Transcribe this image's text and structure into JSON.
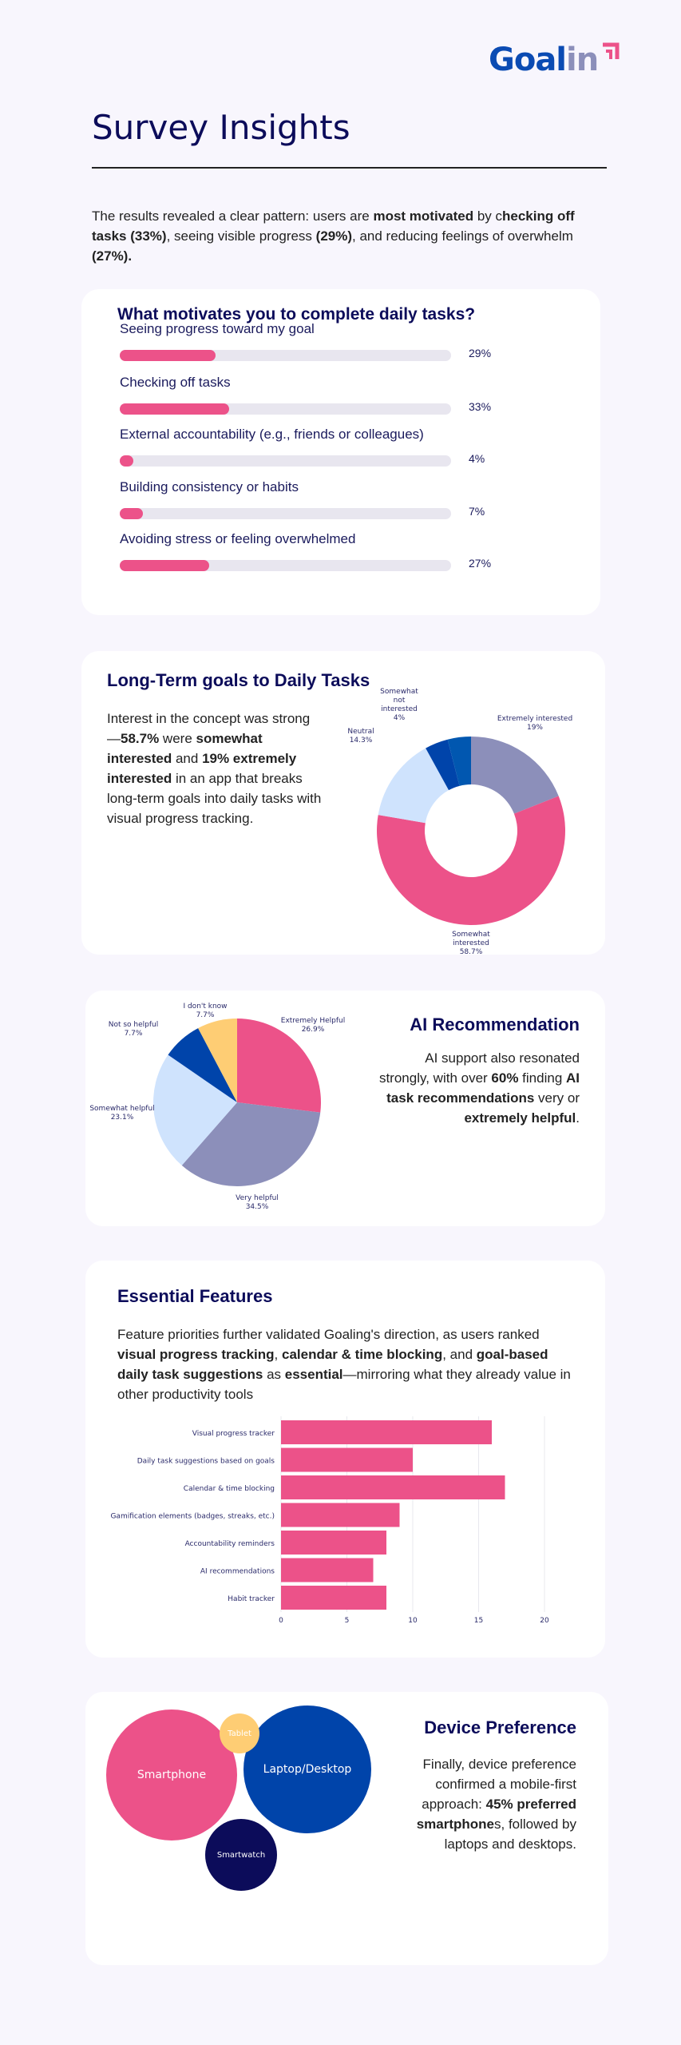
{
  "logo": {
    "text_a": "Goal",
    "text_b": "in"
  },
  "header": {
    "title": "Survey Insights"
  },
  "intro": {
    "t1": "The results revealed a clear pattern: users are ",
    "b1": "most motivated",
    "t2": " by c",
    "b2": "hecking off tasks (33%)",
    "t3": ", seeing visible progress ",
    "b3": "(29%)",
    "t4": ", and reducing feelings of overwhelm ",
    "b4": "(27%)."
  },
  "colors": {
    "pink": "#ec5289",
    "lavender": "#8c8fba",
    "light_blue": "#cfe3fd",
    "blue": "#0044aa",
    "mid_blue": "#0157b0",
    "yellow": "#fecd74",
    "navy": "#0c0c5a"
  },
  "motivation": {
    "title": "What motivates you to complete daily tasks?",
    "items": [
      {
        "label": "Seeing progress toward my goal",
        "value": 29,
        "pct": "29%"
      },
      {
        "label": "Checking off tasks",
        "value": 33,
        "pct": "33%"
      },
      {
        "label": "External accountability (e.g., friends or colleagues)",
        "value": 4,
        "pct": "4%"
      },
      {
        "label": "Building consistency or habits",
        "value": 7,
        "pct": "7%"
      },
      {
        "label": "Avoiding stress or feeling overwhelmed",
        "value": 27,
        "pct": "27%"
      }
    ]
  },
  "longterm": {
    "title": "Long-Term goals to Daily Tasks",
    "t1": "Interest in the concept was strong—",
    "b1": "58.7%",
    "t2": " were ",
    "b2": "somewhat interested",
    "t3": " and ",
    "b3": "19% extremely interested",
    "t4": " in an app that breaks long-term goals into daily tasks with visual progress tracking."
  },
  "ai": {
    "title": "AI Recommendation",
    "t1": "AI support also resonated strongly, with over ",
    "b1": "60%",
    "t2": " finding ",
    "b2": "AI task recommendations",
    "t3": " very or ",
    "b3": "extremely helpful",
    "t4": "."
  },
  "features": {
    "title": "Essential Features",
    "t1": "Feature priorities further validated Goaling's direction, as users ranked ",
    "b1": "visual progress tracking",
    "t2": ", ",
    "b2": "calendar & time blocking",
    "t3": ", and ",
    "b3": "goal-based daily task suggestions",
    "t4": " as ",
    "b4": "essential",
    "t5": "—mirroring what they already value in other productivity tools"
  },
  "device": {
    "title": "Device Preference",
    "t1": "Finally, device preference confirmed a mobile-first approach: ",
    "b1": "45% preferred smartphone",
    "t2": "s, followed by laptops and desktops.",
    "bubbles": [
      {
        "label": "Smartphone",
        "color": "#ec5289"
      },
      {
        "label": "Laptop/Desktop",
        "color": "#0044aa"
      },
      {
        "label": "Tablet",
        "color": "#fecd74"
      },
      {
        "label": "Smartwatch",
        "color": "#0c0c5a"
      }
    ]
  },
  "chart_data": [
    {
      "type": "pie",
      "donut": true,
      "slices": [
        {
          "label": "Extremely interested",
          "value": 19,
          "pct": "19%",
          "color": "#8c8fba"
        },
        {
          "label": "Somewhat interested",
          "value": 58.7,
          "pct": "58.7%",
          "color": "#ec5289"
        },
        {
          "label": "Neutral",
          "value": 14.3,
          "pct": "14.3%",
          "color": "#cfe3fd"
        },
        {
          "label": "Somewhat not interested",
          "value": 4,
          "pct": "4%",
          "color": "#0044aa"
        },
        {
          "label": "",
          "value": 4,
          "pct": "",
          "color": "#0157b0"
        }
      ]
    },
    {
      "type": "pie",
      "slices": [
        {
          "label": "Extremely Helpful",
          "value": 26.9,
          "pct": "26.9%",
          "color": "#ec5289"
        },
        {
          "label": "Very helpful",
          "value": 34.5,
          "pct": "34.5%",
          "color": "#8c8fba"
        },
        {
          "label": "Somewhat helpful",
          "value": 23.1,
          "pct": "23.1%",
          "color": "#cfe3fd"
        },
        {
          "label": "Not so helpful",
          "value": 7.7,
          "pct": "7.7%",
          "color": "#0044aa"
        },
        {
          "label": "I don't know",
          "value": 7.7,
          "pct": "7.7%",
          "color": "#fecd74"
        }
      ]
    },
    {
      "type": "bar",
      "orientation": "horizontal",
      "categories": [
        "Visual progress tracker",
        "Daily task suggestions based on goals",
        "Calendar & time blocking",
        "Gamification elements (badges, streaks, etc.)",
        "Accountability reminders",
        "AI recommendations",
        "Habit tracker"
      ],
      "values": [
        16,
        10,
        17,
        9,
        8,
        7,
        8
      ],
      "xlim": [
        0,
        20
      ],
      "xticks": [
        "0",
        "5",
        "10",
        "15",
        "20"
      ],
      "grid": true,
      "color": "#ec5289"
    }
  ]
}
